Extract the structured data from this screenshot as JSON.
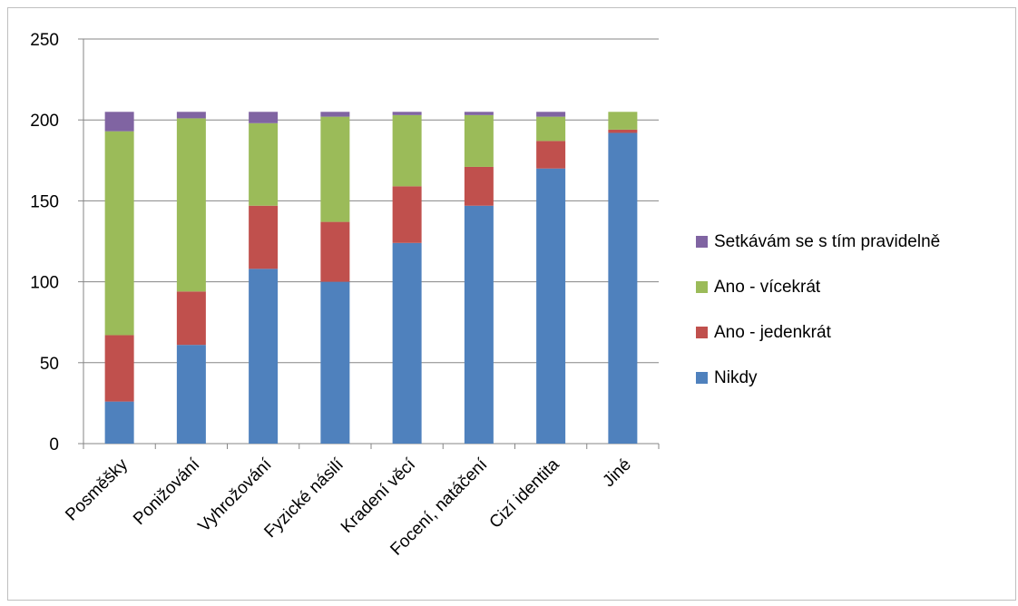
{
  "chart_data": {
    "type": "bar",
    "stacked": true,
    "categories": [
      "Posměšky",
      "Ponižování",
      "Vyhrožování",
      "Fyzické násilí",
      "Kradení věcí",
      "Focení, natáčení",
      "Cizí identita",
      "Jiné"
    ],
    "series": [
      {
        "name": "Nikdy",
        "color": "#4f81bd",
        "values": [
          26,
          61,
          108,
          100,
          124,
          147,
          170,
          192
        ]
      },
      {
        "name": "Ano - jedenkrát",
        "color": "#c0504d",
        "values": [
          41,
          33,
          39,
          37,
          35,
          24,
          17,
          2
        ]
      },
      {
        "name": "Ano - vícekrát",
        "color": "#9bbb59",
        "values": [
          126,
          107,
          51,
          65,
          44,
          32,
          15,
          11
        ]
      },
      {
        "name": "Setkávám se s tím pravidelně",
        "color": "#8064a2",
        "values": [
          12,
          4,
          7,
          3,
          2,
          2,
          3,
          0
        ]
      }
    ],
    "ylim": [
      0,
      250
    ],
    "yticks": [
      "0",
      "50",
      "100",
      "150",
      "200",
      "250"
    ],
    "grid": true,
    "legend_position": "right"
  }
}
